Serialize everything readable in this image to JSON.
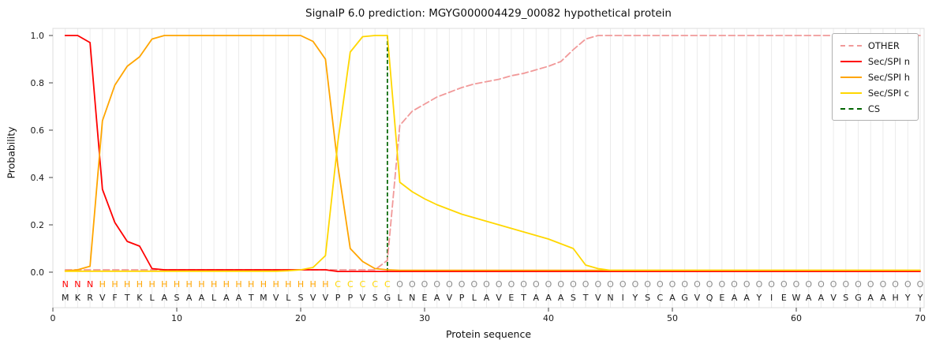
{
  "chart_data": {
    "type": "line",
    "title": "SignalP 6.0 prediction: MGYG000004429_00082 hypothetical protein",
    "xlabel": "Protein sequence",
    "ylabel": "Probability",
    "xlim": [
      0,
      70.3
    ],
    "ylim": [
      -0.15,
      1.03
    ],
    "xticks": [
      0,
      10,
      20,
      30,
      40,
      50,
      60,
      70
    ],
    "yticks": [
      0.0,
      0.2,
      0.4,
      0.6,
      0.8,
      1.0
    ],
    "grid": "light vertical gridline at every residue position",
    "legend_position": "upper right",
    "x": "residue positions 1-70",
    "series": [
      {
        "name": "OTHER",
        "color": "#f19999",
        "dash": true,
        "values": [
          0.01,
          0.01,
          0.01,
          0.01,
          0.01,
          0.01,
          0.01,
          0.01,
          0.01,
          0.01,
          0.01,
          0.01,
          0.01,
          0.01,
          0.01,
          0.01,
          0.01,
          0.01,
          0.01,
          0.01,
          0.01,
          0.01,
          0.01,
          0.01,
          0.01,
          0.01,
          0.05,
          0.62,
          0.68,
          0.71,
          0.74,
          0.76,
          0.78,
          0.795,
          0.805,
          0.815,
          0.83,
          0.84,
          0.855,
          0.87,
          0.89,
          0.94,
          0.985,
          1.0,
          1.0,
          1.0,
          1.0,
          1.0,
          1.0,
          1.0,
          1.0,
          1.0,
          1.0,
          1.0,
          1.0,
          1.0,
          1.0,
          1.0,
          1.0,
          1.0,
          1.0,
          1.0,
          1.0,
          1.0,
          1.0,
          1.0,
          1.0,
          1.0,
          1.0,
          1.0
        ]
      },
      {
        "name": "Sec/SPI n",
        "color": "#ff0000",
        "dash": false,
        "values": [
          1.0,
          1.0,
          0.97,
          0.35,
          0.21,
          0.13,
          0.11,
          0.015,
          0.01,
          0.01,
          0.01,
          0.01,
          0.01,
          0.01,
          0.01,
          0.01,
          0.01,
          0.01,
          0.01,
          0.01,
          0.01,
          0.01,
          0.003,
          0.003,
          0.003,
          0.003,
          0.003,
          0.003,
          0.003,
          0.003,
          0.003,
          0.003,
          0.003,
          0.003,
          0.003,
          0.003,
          0.003,
          0.003,
          0.003,
          0.003,
          0.003,
          0.003,
          0.003,
          0.003,
          0.003,
          0.003,
          0.003,
          0.003,
          0.003,
          0.003,
          0.003,
          0.003,
          0.003,
          0.003,
          0.003,
          0.003,
          0.003,
          0.003,
          0.003,
          0.003,
          0.003,
          0.003,
          0.003,
          0.003,
          0.003,
          0.003,
          0.003,
          0.003,
          0.003,
          0.003
        ]
      },
      {
        "name": "Sec/SPI h",
        "color": "#ffa500",
        "dash": false,
        "values": [
          0.005,
          0.01,
          0.025,
          0.64,
          0.79,
          0.87,
          0.91,
          0.985,
          1.0,
          1.0,
          1.0,
          1.0,
          1.0,
          1.0,
          1.0,
          1.0,
          1.0,
          1.0,
          1.0,
          1.0,
          0.975,
          0.9,
          0.45,
          0.1,
          0.045,
          0.015,
          0.01,
          0.008,
          0.008,
          0.008,
          0.008,
          0.008,
          0.008,
          0.008,
          0.008,
          0.008,
          0.008,
          0.008,
          0.008,
          0.008,
          0.008,
          0.008,
          0.008,
          0.008,
          0.008,
          0.008,
          0.008,
          0.008,
          0.008,
          0.008,
          0.008,
          0.008,
          0.008,
          0.008,
          0.008,
          0.008,
          0.008,
          0.008,
          0.008,
          0.008,
          0.008,
          0.008,
          0.008,
          0.008,
          0.008,
          0.008,
          0.008,
          0.008,
          0.008,
          0.008
        ]
      },
      {
        "name": "Sec/SPI c",
        "color": "#ffd700",
        "dash": false,
        "values": [
          0.004,
          0.004,
          0.004,
          0.004,
          0.004,
          0.004,
          0.004,
          0.004,
          0.004,
          0.004,
          0.004,
          0.004,
          0.004,
          0.004,
          0.004,
          0.004,
          0.004,
          0.004,
          0.006,
          0.01,
          0.02,
          0.07,
          0.55,
          0.93,
          0.995,
          1.0,
          1.0,
          0.38,
          0.34,
          0.31,
          0.285,
          0.265,
          0.245,
          0.23,
          0.215,
          0.2,
          0.185,
          0.17,
          0.155,
          0.14,
          0.12,
          0.1,
          0.03,
          0.015,
          0.008,
          0.008,
          0.008,
          0.008,
          0.008,
          0.008,
          0.008,
          0.008,
          0.008,
          0.008,
          0.008,
          0.008,
          0.008,
          0.008,
          0.008,
          0.008,
          0.008,
          0.008,
          0.008,
          0.008,
          0.008,
          0.008,
          0.008,
          0.008,
          0.008,
          0.008
        ]
      }
    ],
    "cs_line": {
      "name": "CS",
      "position": 27,
      "color": "#006400",
      "dash": true
    }
  },
  "sequence": {
    "residues": "MKRVFTKLASAALAATMVLSVVPPVSGLNEAVPLAVETAAASTVNIYSCAGVQEAAYIEWAAVSGAAHYY",
    "region_labels": "NNNHHHHHHHHHHHHHHHHHHHCCCCCOOOOOOOOOOOOOOOOOOOOOOOOOOOOOOOOOOOOOOOOOOO",
    "region_colors": {
      "N": "#ff0000",
      "H": "#ffa500",
      "C": "#ffd700",
      "O": "#8c8c8c"
    },
    "residue_color": "#1a1a1a"
  }
}
